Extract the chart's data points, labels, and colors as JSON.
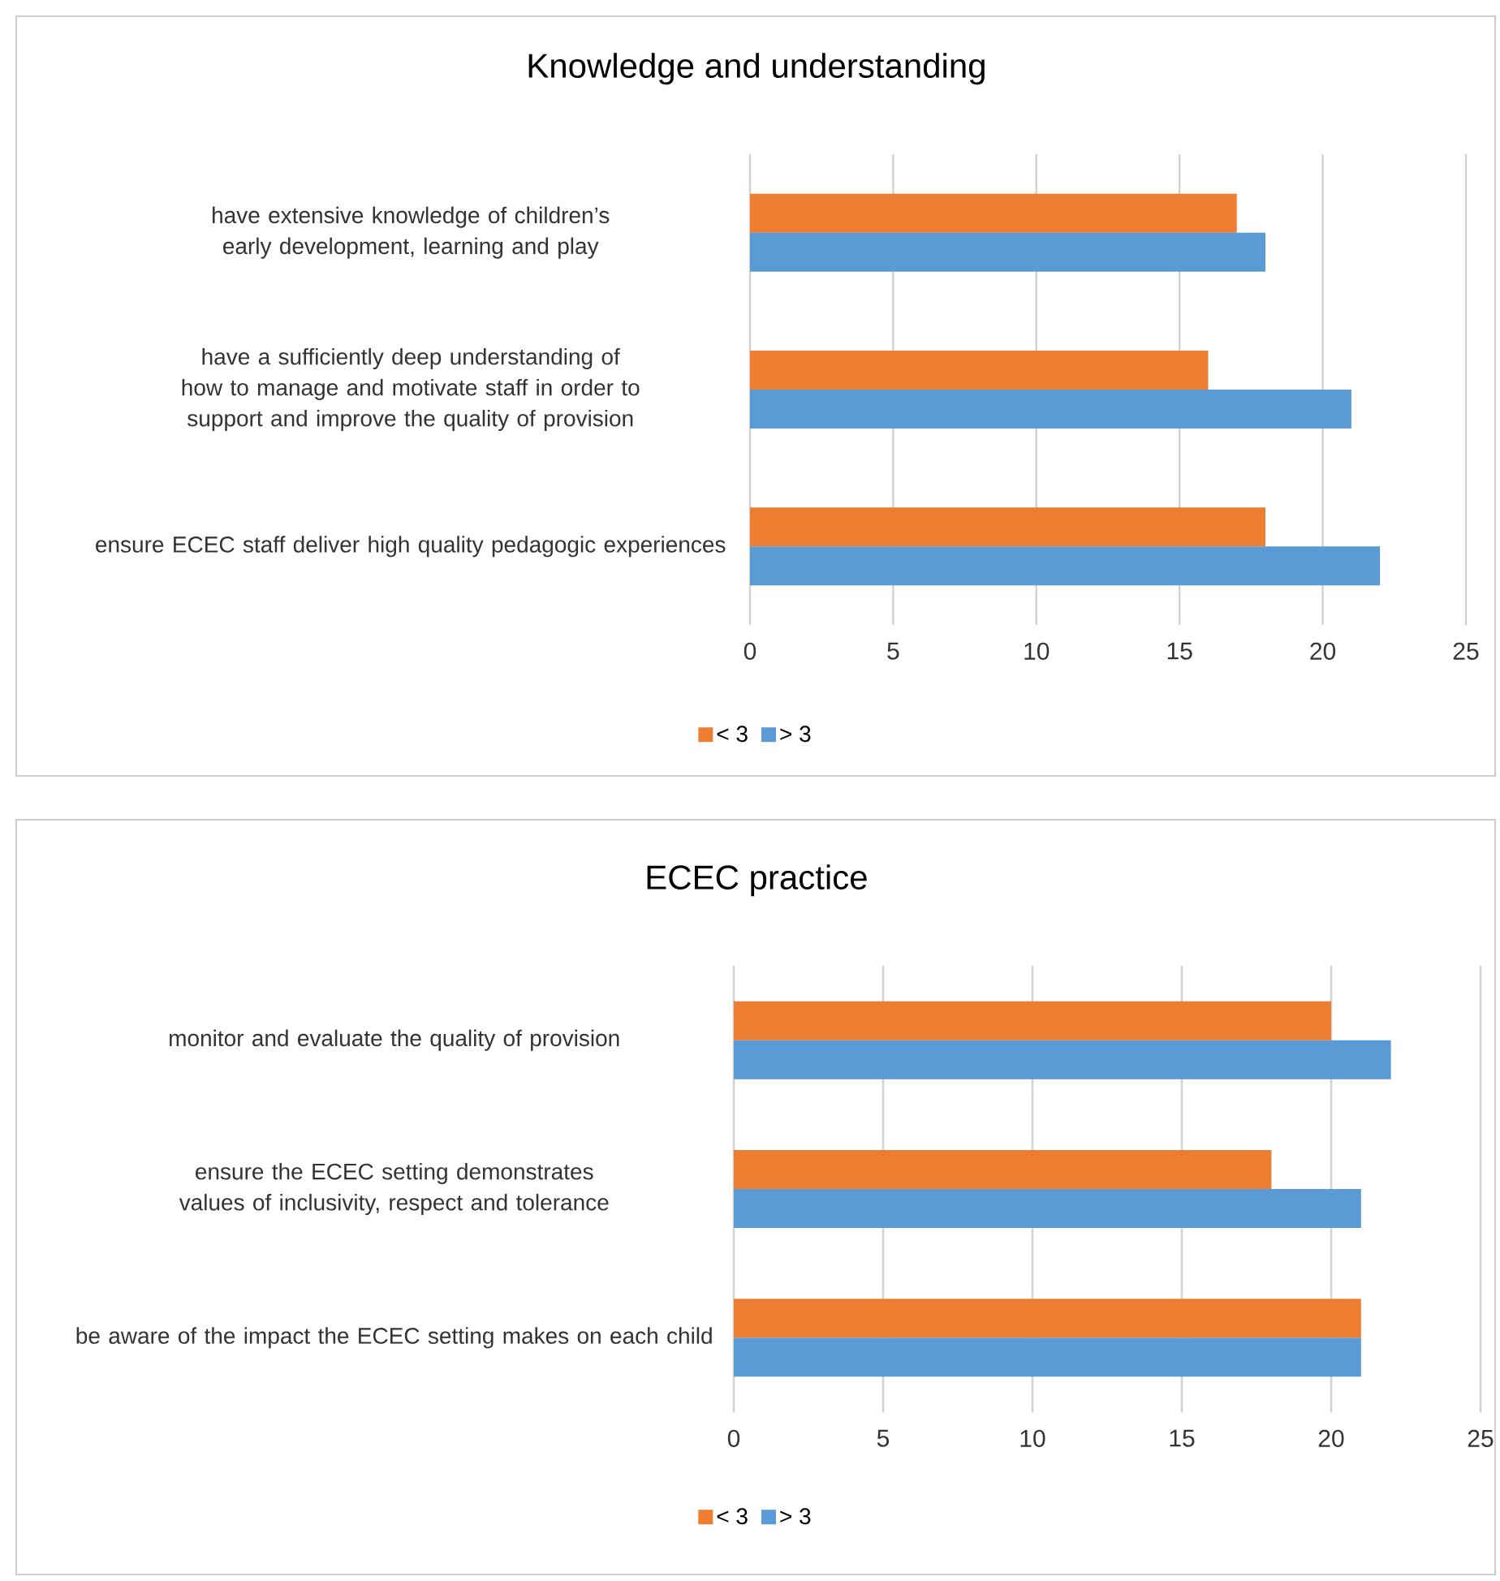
{
  "chart_data": [
    {
      "type": "bar",
      "orientation": "horizontal",
      "title": "Knowledge and understanding",
      "categories": [
        "have extensive knowledge of children’s early development, learning and play",
        "have a sufficiently deep understanding of how to manage and motivate staff in order to support and improve the quality of provision",
        "ensure ECEC staff deliver high quality pedagogic experiences"
      ],
      "series": [
        {
          "name": "< 3",
          "color": "#ed7d31",
          "values": [
            17,
            16,
            18
          ]
        },
        {
          "name": "> 3",
          "color": "#5b9bd5",
          "values": [
            18,
            21,
            22
          ]
        }
      ],
      "xlim": [
        0,
        25
      ],
      "xticks": [
        0,
        5,
        10,
        15,
        20,
        25
      ],
      "grid": "x",
      "legend": "bottom"
    },
    {
      "type": "bar",
      "orientation": "horizontal",
      "title": "ECEC practice",
      "categories": [
        "monitor and evaluate the quality of provision",
        "ensure the ECEC setting demonstrates values of inclusivity, respect and tolerance",
        "be aware of the impact the ECEC setting makes on each child"
      ],
      "series": [
        {
          "name": "< 3",
          "color": "#ed7d31",
          "values": [
            20,
            18,
            21
          ]
        },
        {
          "name": "> 3",
          "color": "#5b9bd5",
          "values": [
            22,
            21,
            21
          ]
        }
      ],
      "xlim": [
        0,
        25
      ],
      "xticks": [
        0,
        5,
        10,
        15,
        20,
        25
      ],
      "grid": "x",
      "legend": "bottom"
    }
  ]
}
